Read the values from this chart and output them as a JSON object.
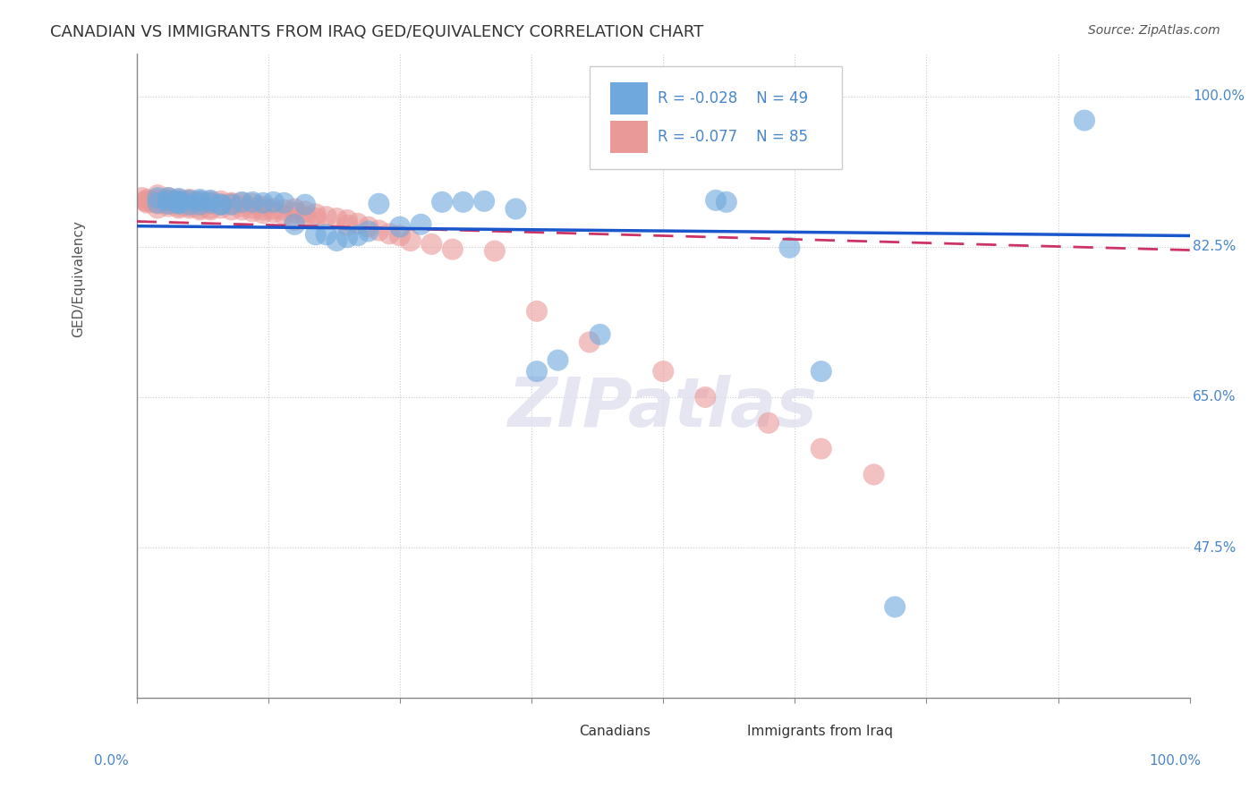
{
  "title": "CANADIAN VS IMMIGRANTS FROM IRAQ GED/EQUIVALENCY CORRELATION CHART",
  "source": "Source: ZipAtlas.com",
  "ylabel": "GED/Equivalency",
  "ytick_labels": [
    "100.0%",
    "82.5%",
    "65.0%",
    "47.5%"
  ],
  "ytick_vals": [
    1.0,
    0.825,
    0.65,
    0.475
  ],
  "legend1_r": "-0.028",
  "legend1_n": "49",
  "legend2_r": "-0.077",
  "legend2_n": "85",
  "blue_color": "#6fa8dc",
  "pink_color": "#ea9999",
  "trend_blue": "#1a56cc",
  "trend_pink": "#cc3366",
  "axis_label_color": "#4a86c8",
  "watermark": "ZIPatlas",
  "can_x": [
    0.02,
    0.02,
    0.03,
    0.03,
    0.03,
    0.04,
    0.04,
    0.04,
    0.04,
    0.04,
    0.05,
    0.05,
    0.06,
    0.06,
    0.06,
    0.07,
    0.07,
    0.08,
    0.08,
    0.09,
    0.1,
    0.11,
    0.12,
    0.13,
    0.14,
    0.15,
    0.16,
    0.17,
    0.18,
    0.19,
    0.2,
    0.21,
    0.22,
    0.23,
    0.25,
    0.27,
    0.29,
    0.31,
    0.33,
    0.36,
    0.38,
    0.4,
    0.44,
    0.55,
    0.56,
    0.62,
    0.65,
    0.72,
    0.9
  ],
  "can_y": [
    0.882,
    0.876,
    0.875,
    0.882,
    0.879,
    0.878,
    0.876,
    0.881,
    0.877,
    0.875,
    0.879,
    0.874,
    0.878,
    0.874,
    0.88,
    0.876,
    0.879,
    0.874,
    0.874,
    0.874,
    0.877,
    0.877,
    0.876,
    0.877,
    0.876,
    0.851,
    0.874,
    0.839,
    0.839,
    0.832,
    0.836,
    0.838,
    0.843,
    0.875,
    0.848,
    0.851,
    0.877,
    0.877,
    0.878,
    0.869,
    0.68,
    0.693,
    0.723,
    0.879,
    0.877,
    0.824,
    0.68,
    0.406,
    0.972
  ],
  "iraq_x": [
    0.005,
    0.008,
    0.01,
    0.01,
    0.01,
    0.015,
    0.02,
    0.02,
    0.02,
    0.02,
    0.02,
    0.025,
    0.03,
    0.03,
    0.03,
    0.03,
    0.03,
    0.035,
    0.04,
    0.04,
    0.04,
    0.04,
    0.04,
    0.04,
    0.05,
    0.05,
    0.05,
    0.05,
    0.05,
    0.05,
    0.06,
    0.06,
    0.06,
    0.06,
    0.06,
    0.07,
    0.07,
    0.07,
    0.07,
    0.08,
    0.08,
    0.08,
    0.09,
    0.09,
    0.09,
    0.1,
    0.1,
    0.1,
    0.11,
    0.11,
    0.11,
    0.12,
    0.12,
    0.12,
    0.13,
    0.13,
    0.14,
    0.14,
    0.15,
    0.15,
    0.15,
    0.16,
    0.16,
    0.17,
    0.17,
    0.18,
    0.19,
    0.2,
    0.2,
    0.21,
    0.22,
    0.23,
    0.24,
    0.25,
    0.26,
    0.28,
    0.3,
    0.34,
    0.38,
    0.43,
    0.5,
    0.54,
    0.6,
    0.65,
    0.7
  ],
  "iraq_y": [
    0.882,
    0.878,
    0.88,
    0.878,
    0.876,
    0.877,
    0.885,
    0.878,
    0.875,
    0.88,
    0.87,
    0.876,
    0.882,
    0.878,
    0.875,
    0.872,
    0.88,
    0.876,
    0.878,
    0.875,
    0.872,
    0.88,
    0.876,
    0.87,
    0.878,
    0.875,
    0.872,
    0.88,
    0.876,
    0.87,
    0.878,
    0.875,
    0.87,
    0.876,
    0.868,
    0.878,
    0.875,
    0.87,
    0.868,
    0.878,
    0.875,
    0.87,
    0.876,
    0.875,
    0.868,
    0.876,
    0.872,
    0.868,
    0.875,
    0.87,
    0.866,
    0.872,
    0.868,
    0.864,
    0.869,
    0.865,
    0.868,
    0.862,
    0.869,
    0.865,
    0.856,
    0.866,
    0.86,
    0.863,
    0.858,
    0.86,
    0.858,
    0.856,
    0.85,
    0.852,
    0.848,
    0.844,
    0.84,
    0.838,
    0.832,
    0.828,
    0.822,
    0.82,
    0.75,
    0.714,
    0.68,
    0.65,
    0.62,
    0.59,
    0.56
  ]
}
